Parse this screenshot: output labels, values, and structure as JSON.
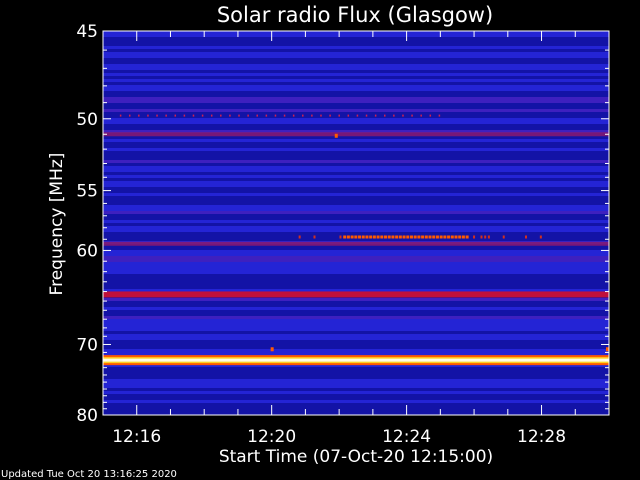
{
  "chart_data": {
    "type": "heatmap",
    "title": "Solar radio Flux (Glasgow)",
    "xlabel": "Start Time (07-Oct-20 12:15:00)",
    "ylabel": "Frequency [MHz]",
    "x_tick_labels": [
      "12:16",
      "12:20",
      "12:24",
      "12:28"
    ],
    "x_tick_minutes": [
      1,
      5,
      9,
      13
    ],
    "xlim_minutes": [
      0,
      15
    ],
    "y_tick_labels": [
      "45",
      "50",
      "55",
      "60",
      "70",
      "80"
    ],
    "y_ticks": [
      45,
      50,
      55,
      60,
      70,
      80
    ],
    "ylim": [
      45,
      80
    ],
    "y_scale": "reciprocal",
    "colormap": [
      "#0b0b8a",
      "#2a2ae0",
      "#b01040",
      "#ff5a00",
      "#ffffe0"
    ],
    "bands": [
      {
        "freq": 51.0,
        "intensity": "medium"
      },
      {
        "freq": 59.4,
        "intensity": "medium"
      },
      {
        "freq": 64.3,
        "intensity": "high"
      },
      {
        "freq": 72.0,
        "intensity": "saturated"
      }
    ]
  },
  "footer": {
    "updated": "Updated Tue Oct 20 13:16:25 2020"
  }
}
